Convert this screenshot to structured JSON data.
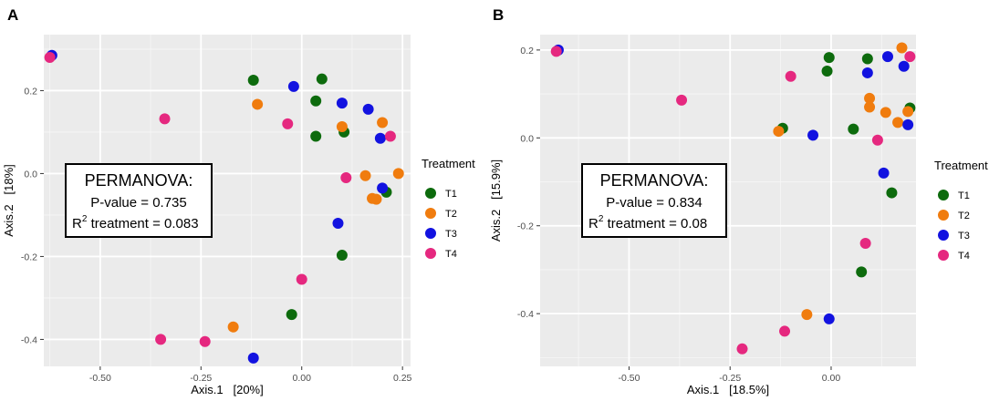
{
  "chart_data": [
    {
      "type": "scatter",
      "panel_label": "A",
      "xlabel": "Axis.1   [20%]",
      "ylabel": "Axis.2   [18%]",
      "xlim": [
        -0.64,
        0.27
      ],
      "ylim": [
        -0.465,
        0.335
      ],
      "xticks": [
        -0.5,
        -0.25,
        0.0,
        0.25
      ],
      "xtick_labels": [
        "-0.50",
        "-0.25",
        "0.00",
        "0.25"
      ],
      "yticks": [
        -0.4,
        -0.2,
        0.0,
        0.2
      ],
      "ytick_labels": [
        "-0.4",
        "-0.2",
        "0.0",
        "0.2"
      ],
      "annotation": {
        "title": "PERMANOVA:",
        "line1": "P-value = 0.735",
        "r_prefix": "R",
        "r_sup": "2",
        "r_rest": " treatment = 0.083"
      },
      "legend": {
        "title": "Treatment",
        "placement": "right",
        "entries": [
          {
            "label": "T1",
            "color": "#0d6b0d"
          },
          {
            "label": "T2",
            "color": "#f07c0e"
          },
          {
            "label": "T3",
            "color": "#1212e0"
          },
          {
            "label": "T4",
            "color": "#e5287f"
          }
        ]
      },
      "series": [
        {
          "name": "T1",
          "color": "#0d6b0d",
          "points": [
            [
              -0.12,
              0.225
            ],
            [
              0.05,
              0.228
            ],
            [
              0.035,
              0.175
            ],
            [
              0.035,
              0.09
            ],
            [
              0.105,
              0.1
            ],
            [
              0.21,
              -0.045
            ],
            [
              0.1,
              -0.197
            ],
            [
              -0.025,
              -0.34
            ]
          ]
        },
        {
          "name": "T2",
          "color": "#f07c0e",
          "points": [
            [
              -0.11,
              0.167
            ],
            [
              0.1,
              0.113
            ],
            [
              0.2,
              0.123
            ],
            [
              0.158,
              -0.005
            ],
            [
              0.24,
              0.0
            ],
            [
              0.175,
              -0.06
            ],
            [
              0.185,
              -0.062
            ],
            [
              -0.17,
              -0.37
            ]
          ]
        },
        {
          "name": "T3",
          "color": "#1212e0",
          "points": [
            [
              -0.62,
              0.285
            ],
            [
              -0.02,
              0.21
            ],
            [
              0.1,
              0.17
            ],
            [
              0.165,
              0.155
            ],
            [
              0.195,
              0.085
            ],
            [
              0.2,
              -0.035
            ],
            [
              0.09,
              -0.12
            ],
            [
              -0.12,
              -0.445
            ]
          ]
        },
        {
          "name": "T4",
          "color": "#e5287f",
          "points": [
            [
              -0.625,
              0.28
            ],
            [
              -0.34,
              0.132
            ],
            [
              -0.035,
              0.12
            ],
            [
              0.22,
              0.09
            ],
            [
              0.11,
              -0.01
            ],
            [
              0.0,
              -0.255
            ],
            [
              -0.35,
              -0.4
            ],
            [
              -0.24,
              -0.405
            ]
          ]
        }
      ]
    },
    {
      "type": "scatter",
      "panel_label": "B",
      "xlabel": "Axis.1   [18.5%]",
      "ylabel": "Axis.2   [15.9%]",
      "xlim": [
        -0.72,
        0.21
      ],
      "ylim": [
        -0.52,
        0.235
      ],
      "xticks": [
        -0.5,
        -0.25,
        0.0
      ],
      "xtick_labels": [
        "-0.50",
        "-0.25",
        "0.00"
      ],
      "yticks": [
        -0.4,
        -0.2,
        0.0,
        0.2
      ],
      "ytick_labels": [
        "-0.4",
        "-0.2",
        "0.0",
        "0.2"
      ],
      "annotation": {
        "title": "PERMANOVA:",
        "line1": "P-value = 0.834",
        "r_prefix": "R",
        "r_sup": "2",
        "r_rest": " treatment = 0.08"
      },
      "legend": {
        "title": "Treatment",
        "placement": "right",
        "entries": [
          {
            "label": "T1",
            "color": "#0d6b0d"
          },
          {
            "label": "T2",
            "color": "#f07c0e"
          },
          {
            "label": "T3",
            "color": "#1212e0"
          },
          {
            "label": "T4",
            "color": "#e5287f"
          }
        ]
      },
      "series": [
        {
          "name": "T1",
          "color": "#0d6b0d",
          "points": [
            [
              -0.005,
              0.183
            ],
            [
              -0.01,
              0.152
            ],
            [
              0.09,
              0.18
            ],
            [
              0.195,
              0.068
            ],
            [
              -0.12,
              0.022
            ],
            [
              0.055,
              0.02
            ],
            [
              0.15,
              -0.125
            ],
            [
              0.075,
              -0.305
            ]
          ]
        },
        {
          "name": "T2",
          "color": "#f07c0e",
          "points": [
            [
              0.175,
              0.205
            ],
            [
              0.095,
              0.09
            ],
            [
              0.095,
              0.07
            ],
            [
              0.135,
              0.058
            ],
            [
              0.165,
              0.035
            ],
            [
              0.19,
              0.06
            ],
            [
              -0.13,
              0.015
            ],
            [
              -0.06,
              -0.402
            ]
          ]
        },
        {
          "name": "T3",
          "color": "#1212e0",
          "points": [
            [
              -0.675,
              0.2
            ],
            [
              0.14,
              0.185
            ],
            [
              0.18,
              0.163
            ],
            [
              0.09,
              0.148
            ],
            [
              0.19,
              0.03
            ],
            [
              -0.045,
              0.006
            ],
            [
              0.13,
              -0.08
            ],
            [
              -0.005,
              -0.412
            ]
          ]
        },
        {
          "name": "T4",
          "color": "#e5287f",
          "points": [
            [
              -0.68,
              0.197
            ],
            [
              -0.1,
              0.14
            ],
            [
              -0.37,
              0.086
            ],
            [
              0.195,
              0.185
            ],
            [
              0.115,
              -0.005
            ],
            [
              0.085,
              -0.24
            ],
            [
              -0.115,
              -0.44
            ],
            [
              -0.22,
              -0.48
            ]
          ]
        }
      ]
    }
  ]
}
